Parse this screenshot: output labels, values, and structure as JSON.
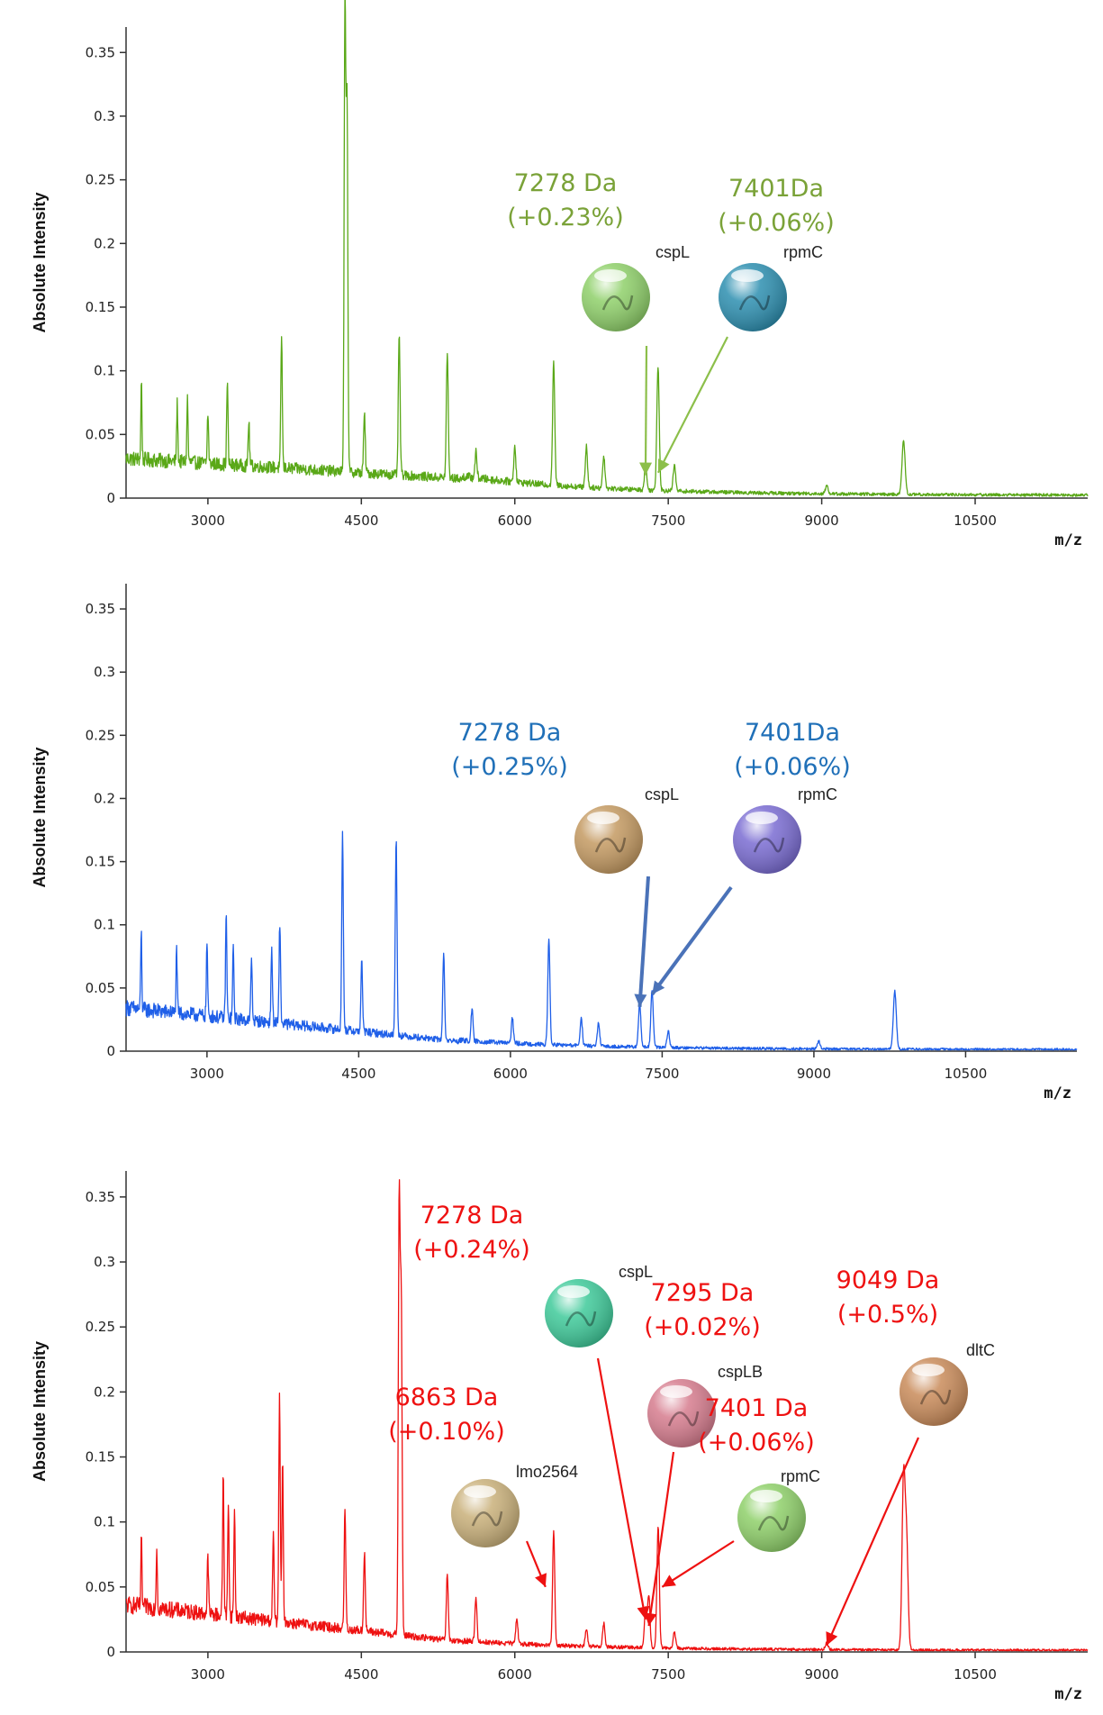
{
  "chart_data": [
    {
      "type": "line",
      "color": "#5aa818",
      "xlabel": "m/z",
      "ylabel": "Absolute Intensity",
      "xlim": [
        2200,
        11600
      ],
      "ylim": [
        0,
        0.37
      ],
      "x_ticks": [
        3000,
        4500,
        6000,
        7500,
        9000,
        10500
      ],
      "y_ticks": [
        0,
        0.05,
        0.1,
        0.15,
        0.2,
        0.25,
        0.3,
        0.35
      ],
      "x_tick_labels": [
        "3000",
        "4500",
        "6000",
        "7500",
        "9000",
        "10500"
      ],
      "y_tick_labels": [
        "0",
        "0.05",
        "0.1",
        "0.15",
        "0.2",
        "0.25",
        "0.3",
        "0.35"
      ],
      "baseline": {
        "start": 0.03,
        "end": 0.008,
        "knee": 5500
      },
      "peaks": [
        {
          "x": 2350,
          "y": 0.062
        },
        {
          "x": 2700,
          "y": 0.045
        },
        {
          "x": 2800,
          "y": 0.05
        },
        {
          "x": 3000,
          "y": 0.04
        },
        {
          "x": 3190,
          "y": 0.065
        },
        {
          "x": 3400,
          "y": 0.035
        },
        {
          "x": 3720,
          "y": 0.103
        },
        {
          "x": 4340,
          "y": 0.37
        },
        {
          "x": 4360,
          "y": 0.29
        },
        {
          "x": 4530,
          "y": 0.045
        },
        {
          "x": 4870,
          "y": 0.11
        },
        {
          "x": 5340,
          "y": 0.097
        },
        {
          "x": 5620,
          "y": 0.02
        },
        {
          "x": 6000,
          "y": 0.028
        },
        {
          "x": 6380,
          "y": 0.096
        },
        {
          "x": 6700,
          "y": 0.032
        },
        {
          "x": 6870,
          "y": 0.025
        },
        {
          "x": 7278,
          "y": 0.018
        },
        {
          "x": 7400,
          "y": 0.097
        },
        {
          "x": 7560,
          "y": 0.02
        },
        {
          "x": 9049,
          "y": 0.006
        },
        {
          "x": 9800,
          "y": 0.042
        }
      ],
      "annotations": [
        {
          "mass": "7278 Da",
          "shift": "(+0.23%)",
          "protein": "cspL",
          "target_x": 7278,
          "target_y": 0.018
        },
        {
          "mass": "7401Da",
          "shift": "(+0.06%)",
          "protein": "rpmC",
          "target_x": 7401,
          "target_y": 0.02
        }
      ]
    },
    {
      "type": "line",
      "color": "#1f5fe8",
      "xlabel": "m/z",
      "ylabel": "Absolute Intensity",
      "xlim": [
        2200,
        11600
      ],
      "ylim": [
        0,
        0.37
      ],
      "x_ticks": [
        3000,
        4500,
        6000,
        7500,
        9000,
        10500
      ],
      "y_ticks": [
        0,
        0.05,
        0.1,
        0.15,
        0.2,
        0.25,
        0.3,
        0.35
      ],
      "x_tick_labels": [
        "3000",
        "4500",
        "6000",
        "7500",
        "9000",
        "10500"
      ],
      "y_tick_labels": [
        "0",
        "0.05",
        "0.1",
        "0.15",
        "0.2",
        "0.25",
        "0.3",
        "0.35"
      ],
      "baseline": {
        "start": 0.033,
        "end": 0.004,
        "knee": 5500
      },
      "peaks": [
        {
          "x": 2350,
          "y": 0.062
        },
        {
          "x": 2700,
          "y": 0.05
        },
        {
          "x": 3000,
          "y": 0.058
        },
        {
          "x": 3190,
          "y": 0.082
        },
        {
          "x": 3260,
          "y": 0.055
        },
        {
          "x": 3440,
          "y": 0.05
        },
        {
          "x": 3640,
          "y": 0.058
        },
        {
          "x": 3720,
          "y": 0.08
        },
        {
          "x": 4340,
          "y": 0.155
        },
        {
          "x": 4530,
          "y": 0.055
        },
        {
          "x": 4870,
          "y": 0.155
        },
        {
          "x": 5340,
          "y": 0.068
        },
        {
          "x": 5620,
          "y": 0.025
        },
        {
          "x": 6020,
          "y": 0.02
        },
        {
          "x": 6380,
          "y": 0.083
        },
        {
          "x": 6700,
          "y": 0.022
        },
        {
          "x": 6870,
          "y": 0.018
        },
        {
          "x": 7278,
          "y": 0.035
        },
        {
          "x": 7400,
          "y": 0.045
        },
        {
          "x": 7560,
          "y": 0.013
        },
        {
          "x": 9049,
          "y": 0.006
        },
        {
          "x": 9800,
          "y": 0.046
        }
      ],
      "annotations": [
        {
          "mass": "7278 Da",
          "shift": "(+0.25%)",
          "protein": "cspL",
          "target_x": 7278,
          "target_y": 0.035
        },
        {
          "mass": "7401Da",
          "shift": "(+0.06%)",
          "protein": "rpmC",
          "target_x": 7401,
          "target_y": 0.045
        }
      ]
    },
    {
      "type": "line",
      "color": "#ee1111",
      "xlabel": "m/z",
      "ylabel": "Absolute Intensity",
      "xlim": [
        2200,
        11600
      ],
      "ylim": [
        0,
        0.37
      ],
      "x_ticks": [
        3000,
        4500,
        6000,
        7500,
        9000,
        10500
      ],
      "y_ticks": [
        0,
        0.05,
        0.1,
        0.15,
        0.2,
        0.25,
        0.3,
        0.35
      ],
      "x_tick_labels": [
        "3000",
        "4500",
        "6000",
        "7500",
        "9000",
        "10500"
      ],
      "y_tick_labels": [
        "0",
        "0.05",
        "0.1",
        "0.15",
        "0.2",
        "0.25",
        "0.3",
        "0.35"
      ],
      "baseline": {
        "start": 0.035,
        "end": 0.004,
        "knee": 5500
      },
      "peaks": [
        {
          "x": 2350,
          "y": 0.05
        },
        {
          "x": 2500,
          "y": 0.048
        },
        {
          "x": 3000,
          "y": 0.045
        },
        {
          "x": 3150,
          "y": 0.11
        },
        {
          "x": 3200,
          "y": 0.09
        },
        {
          "x": 3260,
          "y": 0.08
        },
        {
          "x": 3640,
          "y": 0.065
        },
        {
          "x": 3700,
          "y": 0.172
        },
        {
          "x": 3730,
          "y": 0.12
        },
        {
          "x": 4340,
          "y": 0.092
        },
        {
          "x": 4530,
          "y": 0.06
        },
        {
          "x": 4870,
          "y": 0.333
        },
        {
          "x": 4890,
          "y": 0.25
        },
        {
          "x": 5340,
          "y": 0.05
        },
        {
          "x": 5620,
          "y": 0.035
        },
        {
          "x": 6020,
          "y": 0.02
        },
        {
          "x": 6380,
          "y": 0.088
        },
        {
          "x": 6700,
          "y": 0.013
        },
        {
          "x": 6870,
          "y": 0.018
        },
        {
          "x": 7278,
          "y": 0.03
        },
        {
          "x": 7310,
          "y": 0.04
        },
        {
          "x": 7401,
          "y": 0.093
        },
        {
          "x": 7560,
          "y": 0.012
        },
        {
          "x": 9049,
          "y": 0.005
        },
        {
          "x": 9800,
          "y": 0.13
        },
        {
          "x": 9830,
          "y": 0.08
        }
      ],
      "annotations": [
        {
          "mass": "7278 Da",
          "shift": "(+0.24%)",
          "protein": "cspL",
          "target_x": 7278,
          "target_y": 0.025
        },
        {
          "mass": "7295 Da",
          "shift": "(+0.02%)",
          "protein": "cspLB",
          "target_x": 7310,
          "target_y": 0.02
        },
        {
          "mass": "9049 Da",
          "shift": "(+0.5%)",
          "protein": "dltC",
          "target_x": 9049,
          "target_y": 0.005
        },
        {
          "mass": "6863 Da",
          "shift": "(+0.10%)",
          "protein": "lmo2564",
          "target_x": 6300,
          "target_y": 0.05
        },
        {
          "mass": "7401 Da",
          "shift": "(+0.06%)",
          "protein": "rpmC",
          "target_x": 7440,
          "target_y": 0.05
        }
      ]
    }
  ]
}
